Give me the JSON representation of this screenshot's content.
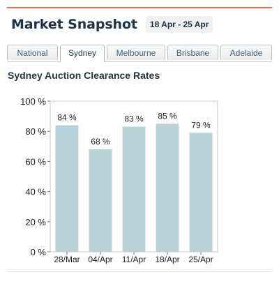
{
  "header": {
    "title": "Market Snapshot",
    "date_range": "18 Apr - 25 Apr"
  },
  "tabs": [
    {
      "label": "National",
      "active": false
    },
    {
      "label": "Sydney",
      "active": true
    },
    {
      "label": "Melbourne",
      "active": false
    },
    {
      "label": "Brisbane",
      "active": false
    },
    {
      "label": "Adelaide",
      "active": false
    }
  ],
  "colors": {
    "accent_rule": "#e4734a",
    "bar": "#b9d2d9",
    "text": "#1d3549"
  },
  "chart_data": {
    "type": "bar",
    "title": "Sydney Auction Clearance Rates",
    "categories": [
      "28/Mar",
      "04/Apr",
      "11/Apr",
      "18/Apr",
      "25/Apr"
    ],
    "values": [
      84,
      68,
      83,
      85,
      79
    ],
    "value_labels": [
      "84 %",
      "68 %",
      "83 %",
      "85 %",
      "79 %"
    ],
    "ylim": [
      0,
      100
    ],
    "yticks": [
      0,
      20,
      40,
      60,
      80,
      100
    ],
    "ytick_labels": [
      "0 %",
      "20 %",
      "40 %",
      "60 %",
      "80 %",
      "100 %"
    ],
    "xlabel": "",
    "ylabel": "",
    "grid": false,
    "legend": "none"
  }
}
